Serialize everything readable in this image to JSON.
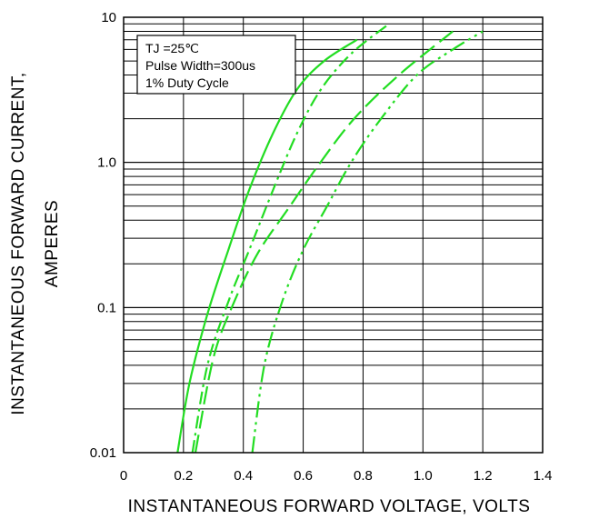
{
  "chart_data": {
    "type": "line",
    "xlabel": "INSTANTANEOUS FORWARD VOLTAGE, VOLTS",
    "ylabel_line1": "INSTANTANEOUS FORWARD CURRENT,",
    "ylabel_line2": "AMPERES",
    "xlim": [
      0,
      1.4
    ],
    "ylim": [
      0.01,
      10
    ],
    "yscale": "log",
    "grid": true,
    "x_ticks": [
      "0",
      "0.2",
      "0.4",
      "0.6",
      "0.8",
      "1.0",
      "1.2",
      "1.4"
    ],
    "y_ticks": [
      "0.01",
      "0.1",
      "1.0",
      "10"
    ],
    "legend_lines": [
      "TJ =25℃",
      "Pulse Width=300us",
      "1% Duty Cycle"
    ],
    "legend_position": "top-left",
    "line_color": "#22dd22",
    "series": [
      {
        "dash": "solid",
        "x": [
          0.18,
          0.22,
          0.28,
          0.35,
          0.42,
          0.5,
          0.58,
          0.67,
          0.78
        ],
        "y": [
          0.01,
          0.03,
          0.09,
          0.25,
          0.65,
          1.6,
          3.2,
          5.0,
          7.0
        ]
      },
      {
        "dash": "dashdot",
        "x": [
          0.23,
          0.28,
          0.35,
          0.42,
          0.5,
          0.58,
          0.66,
          0.76,
          0.88
        ],
        "y": [
          0.01,
          0.04,
          0.11,
          0.25,
          0.65,
          1.6,
          3.2,
          5.6,
          8.8
        ]
      },
      {
        "dash": "longdash",
        "x": [
          0.24,
          0.3,
          0.37,
          0.45,
          0.55,
          0.65,
          0.77,
          0.92,
          1.1
        ],
        "y": [
          0.01,
          0.045,
          0.11,
          0.24,
          0.48,
          0.95,
          2.0,
          4.0,
          8.0
        ]
      },
      {
        "dash": "dashdotdot",
        "x": [
          0.43,
          0.47,
          0.53,
          0.6,
          0.68,
          0.76,
          0.86,
          0.98,
          1.1,
          1.2
        ],
        "y": [
          0.01,
          0.04,
          0.11,
          0.25,
          0.5,
          1.0,
          2.0,
          4.0,
          6.0,
          8.0
        ]
      }
    ]
  }
}
